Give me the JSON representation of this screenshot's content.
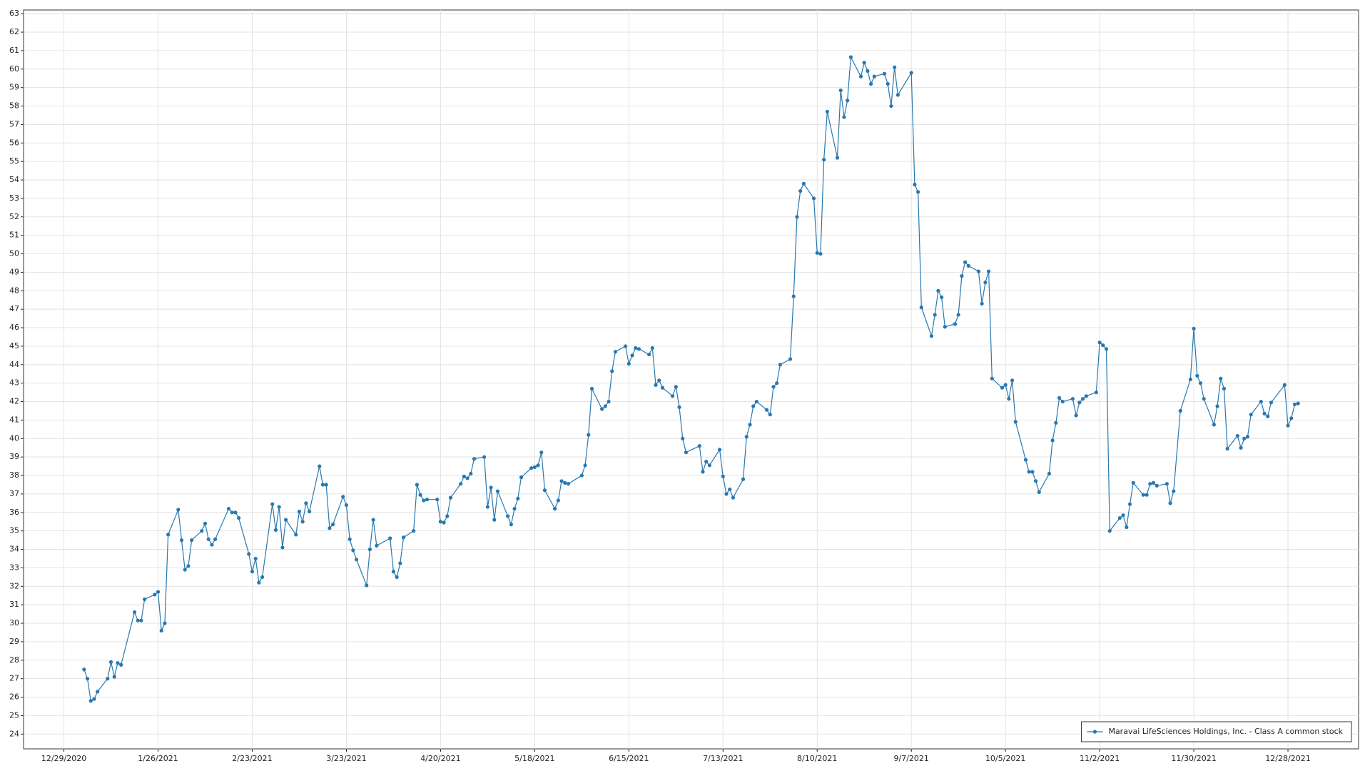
{
  "chart_data": {
    "type": "line",
    "grid": true,
    "legend": "lower right",
    "xlim": [
      "12/17/2020",
      "1/18/2022"
    ],
    "ylim": [
      23.2,
      63.2
    ],
    "xticks": [
      "12/29/2020",
      "1/26/2021",
      "2/23/2021",
      "3/23/2021",
      "4/20/2021",
      "5/18/2021",
      "6/15/2021",
      "7/13/2021",
      "8/10/2021",
      "9/7/2021",
      "10/5/2021",
      "11/2/2021",
      "11/30/2021",
      "12/28/2021"
    ],
    "yticks": [
      24,
      25,
      26,
      27,
      28,
      29,
      30,
      31,
      32,
      33,
      34,
      35,
      36,
      37,
      38,
      39,
      40,
      41,
      42,
      43,
      44,
      45,
      46,
      47,
      48,
      49,
      50,
      51,
      52,
      53,
      54,
      55,
      56,
      57,
      58,
      59,
      60,
      61,
      62,
      63
    ],
    "x": [
      "1/4/2021",
      "1/5/2021",
      "1/6/2021",
      "1/7/2021",
      "1/8/2021",
      "1/11/2021",
      "1/12/2021",
      "1/13/2021",
      "1/14/2021",
      "1/15/2021",
      "1/19/2021",
      "1/20/2021",
      "1/21/2021",
      "1/22/2021",
      "1/25/2021",
      "1/26/2021",
      "1/27/2021",
      "1/28/2021",
      "1/29/2021",
      "2/1/2021",
      "2/2/2021",
      "2/3/2021",
      "2/4/2021",
      "2/5/2021",
      "2/8/2021",
      "2/9/2021",
      "2/10/2021",
      "2/11/2021",
      "2/12/2021",
      "2/16/2021",
      "2/17/2021",
      "2/18/2021",
      "2/19/2021",
      "2/22/2021",
      "2/23/2021",
      "2/24/2021",
      "2/25/2021",
      "2/26/2021",
      "3/1/2021",
      "3/2/2021",
      "3/3/2021",
      "3/4/2021",
      "3/5/2021",
      "3/8/2021",
      "3/9/2021",
      "3/10/2021",
      "3/11/2021",
      "3/12/2021",
      "3/15/2021",
      "3/16/2021",
      "3/17/2021",
      "3/18/2021",
      "3/19/2021",
      "3/22/2021",
      "3/23/2021",
      "3/24/2021",
      "3/25/2021",
      "3/26/2021",
      "3/29/2021",
      "3/30/2021",
      "3/31/2021",
      "4/1/2021",
      "4/5/2021",
      "4/6/2021",
      "4/7/2021",
      "4/8/2021",
      "4/9/2021",
      "4/12/2021",
      "4/13/2021",
      "4/14/2021",
      "4/15/2021",
      "4/16/2021",
      "4/19/2021",
      "4/20/2021",
      "4/21/2021",
      "4/22/2021",
      "4/23/2021",
      "4/26/2021",
      "4/27/2021",
      "4/28/2021",
      "4/29/2021",
      "4/30/2021",
      "5/3/2021",
      "5/4/2021",
      "5/5/2021",
      "5/6/2021",
      "5/7/2021",
      "5/10/2021",
      "5/11/2021",
      "5/12/2021",
      "5/13/2021",
      "5/14/2021",
      "5/17/2021",
      "5/18/2021",
      "5/19/2021",
      "5/20/2021",
      "5/21/2021",
      "5/24/2021",
      "5/25/2021",
      "5/26/2021",
      "5/27/2021",
      "5/28/2021",
      "6/1/2021",
      "6/2/2021",
      "6/3/2021",
      "6/4/2021",
      "6/7/2021",
      "6/8/2021",
      "6/9/2021",
      "6/10/2021",
      "6/11/2021",
      "6/14/2021",
      "6/15/2021",
      "6/16/2021",
      "6/17/2021",
      "6/18/2021",
      "6/21/2021",
      "6/22/2021",
      "6/23/2021",
      "6/24/2021",
      "6/25/2021",
      "6/28/2021",
      "6/29/2021",
      "6/30/2021",
      "7/1/2021",
      "7/2/2021",
      "7/6/2021",
      "7/7/2021",
      "7/8/2021",
      "7/9/2021",
      "7/12/2021",
      "7/13/2021",
      "7/14/2021",
      "7/15/2021",
      "7/16/2021",
      "7/19/2021",
      "7/20/2021",
      "7/21/2021",
      "7/22/2021",
      "7/23/2021",
      "7/26/2021",
      "7/27/2021",
      "7/28/2021",
      "7/29/2021",
      "7/30/2021",
      "8/2/2021",
      "8/3/2021",
      "8/4/2021",
      "8/5/2021",
      "8/6/2021",
      "8/9/2021",
      "8/10/2021",
      "8/11/2021",
      "8/12/2021",
      "8/13/2021",
      "8/16/2021",
      "8/17/2021",
      "8/18/2021",
      "8/19/2021",
      "8/20/2021",
      "8/23/2021",
      "8/24/2021",
      "8/25/2021",
      "8/26/2021",
      "8/27/2021",
      "8/30/2021",
      "8/31/2021",
      "9/1/2021",
      "9/2/2021",
      "9/3/2021",
      "9/7/2021",
      "9/8/2021",
      "9/9/2021",
      "9/10/2021",
      "9/13/2021",
      "9/14/2021",
      "9/15/2021",
      "9/16/2021",
      "9/17/2021",
      "9/20/2021",
      "9/21/2021",
      "9/22/2021",
      "9/23/2021",
      "9/24/2021",
      "9/27/2021",
      "9/28/2021",
      "9/29/2021",
      "9/30/2021",
      "10/1/2021",
      "10/4/2021",
      "10/5/2021",
      "10/6/2021",
      "10/7/2021",
      "10/8/2021",
      "10/11/2021",
      "10/12/2021",
      "10/13/2021",
      "10/14/2021",
      "10/15/2021",
      "10/18/2021",
      "10/19/2021",
      "10/20/2021",
      "10/21/2021",
      "10/22/2021",
      "10/25/2021",
      "10/26/2021",
      "10/27/2021",
      "10/28/2021",
      "10/29/2021",
      "11/1/2021",
      "11/2/2021",
      "11/3/2021",
      "11/4/2021",
      "11/5/2021",
      "11/8/2021",
      "11/9/2021",
      "11/10/2021",
      "11/11/2021",
      "11/12/2021",
      "11/15/2021",
      "11/16/2021",
      "11/17/2021",
      "11/18/2021",
      "11/19/2021",
      "11/22/2021",
      "11/23/2021",
      "11/24/2021",
      "11/26/2021",
      "11/29/2021",
      "11/30/2021",
      "12/1/2021",
      "12/2/2021",
      "12/3/2021",
      "12/6/2021",
      "12/7/2021",
      "12/8/2021",
      "12/9/2021",
      "12/10/2021",
      "12/13/2021",
      "12/14/2021",
      "12/15/2021",
      "12/16/2021",
      "12/17/2021",
      "12/20/2021",
      "12/21/2021",
      "12/22/2021",
      "12/23/2021",
      "12/27/2021",
      "12/28/2021",
      "12/29/2021",
      "12/30/2021",
      "12/31/2021"
    ],
    "series": [
      {
        "name": "Maravai LifeSciences Holdings, Inc. - Class A common stock",
        "color": "#2878b0",
        "values": [
          27.5,
          27.0,
          25.8,
          25.9,
          26.3,
          27.0,
          27.9,
          27.1,
          27.85,
          27.75,
          30.6,
          30.15,
          30.15,
          31.3,
          31.55,
          31.7,
          29.6,
          30.0,
          34.8,
          36.15,
          34.5,
          32.9,
          33.1,
          34.5,
          35.0,
          35.4,
          34.55,
          34.25,
          34.55,
          36.2,
          36.0,
          36.0,
          35.7,
          33.75,
          32.8,
          33.5,
          32.2,
          32.5,
          36.45,
          35.05,
          36.3,
          34.1,
          35.6,
          34.8,
          36.05,
          35.5,
          36.5,
          36.05,
          38.5,
          37.5,
          37.5,
          35.15,
          35.35,
          36.85,
          36.4,
          34.55,
          33.95,
          33.45,
          32.05,
          34.0,
          35.6,
          34.2,
          34.6,
          32.8,
          32.5,
          33.25,
          34.65,
          35.0,
          37.5,
          36.95,
          36.65,
          36.7,
          36.7,
          35.5,
          35.45,
          35.8,
          36.8,
          37.55,
          37.95,
          37.85,
          38.1,
          38.9,
          39.0,
          36.3,
          37.35,
          35.6,
          37.15,
          35.8,
          35.35,
          36.2,
          36.75,
          37.9,
          38.4,
          38.45,
          38.55,
          39.25,
          37.2,
          36.2,
          36.65,
          37.7,
          37.6,
          37.55,
          38.0,
          38.55,
          40.2,
          42.7,
          41.6,
          41.75,
          42.0,
          43.65,
          44.7,
          45.0,
          44.05,
          44.5,
          44.9,
          44.85,
          44.55,
          44.9,
          42.9,
          43.15,
          42.75,
          42.3,
          42.8,
          41.7,
          40.0,
          39.25,
          39.6,
          38.2,
          38.75,
          38.55,
          39.4,
          37.95,
          37.0,
          37.25,
          36.8,
          37.8,
          40.1,
          40.75,
          41.75,
          42.0,
          41.55,
          41.3,
          42.8,
          43.0,
          44.0,
          44.3,
          47.7,
          52.0,
          53.4,
          53.8,
          53.0,
          50.05,
          50.0,
          55.1,
          57.7,
          55.2,
          58.85,
          57.4,
          58.3,
          60.65,
          59.6,
          60.35,
          59.9,
          59.2,
          59.6,
          59.75,
          59.2,
          58.0,
          60.1,
          58.6,
          59.8,
          53.75,
          53.35,
          47.1,
          45.55,
          46.7,
          48.0,
          47.65,
          46.05,
          46.2,
          46.7,
          48.8,
          49.55,
          49.35,
          49.05,
          47.3,
          48.45,
          49.05,
          43.25,
          42.75,
          42.9,
          42.15,
          43.15,
          40.9,
          38.85,
          38.2,
          38.2,
          37.7,
          37.1,
          38.1,
          39.9,
          40.85,
          42.2,
          42.0,
          42.15,
          41.25,
          41.95,
          42.15,
          42.3,
          42.5,
          45.2,
          45.05,
          44.85,
          35.0,
          35.7,
          35.85,
          35.2,
          36.45,
          37.6,
          36.95,
          36.95,
          37.55,
          37.6,
          37.45,
          37.55,
          36.5,
          37.15,
          41.5,
          43.2,
          45.95,
          43.4,
          43.0,
          42.15,
          40.75,
          41.75,
          43.25,
          42.7,
          39.45,
          40.15,
          39.5,
          40.0,
          40.1,
          41.3,
          42.0,
          41.35,
          41.2,
          41.95,
          42.9,
          40.7,
          41.1,
          41.85,
          41.9
        ]
      }
    ]
  }
}
